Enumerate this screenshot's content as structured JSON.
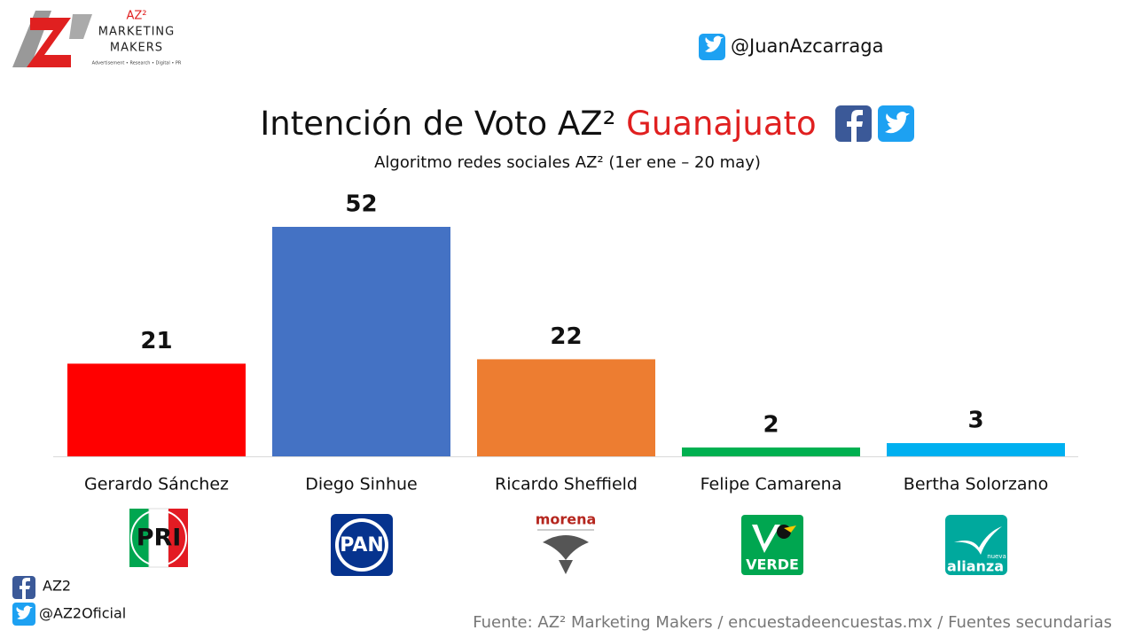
{
  "brand": {
    "name": "AZ²",
    "line1": "MARKETING",
    "line2": "MAKERS",
    "tagline": "Advertisement • Research • Digital • PR"
  },
  "twitter_top": "@JuanAzcarraga",
  "chart_data": {
    "type": "bar",
    "title": "Intención de Voto AZ²",
    "title_highlight": "Guanajuato",
    "subtitle": "Algoritmo redes sociales AZ² (1er ene – 20 may)",
    "categories": [
      "Gerardo Sánchez",
      "Diego Sinhue",
      "Ricardo Sheffield",
      "Felipe Camarena",
      "Bertha Solorzano"
    ],
    "values": [
      21,
      52,
      22,
      2,
      3
    ],
    "colors": [
      "#ff0000",
      "#4472c4",
      "#ed7d31",
      "#00b050",
      "#00b0f0"
    ]
  },
  "logos": {
    "pri": "PRI",
    "pan": "PAN",
    "morena": "morena",
    "verde": "VERDE",
    "alianza": "alianza",
    "nueva": "nueva"
  },
  "social": {
    "facebook": "AZ2",
    "twitter": "@AZ2Oficial"
  },
  "source": "Fuente: AZ² Marketing Makers / encuestadeencuestas.mx / Fuentes secundarias"
}
